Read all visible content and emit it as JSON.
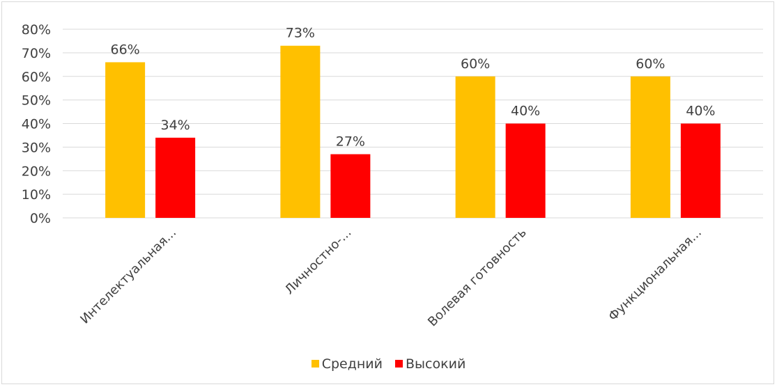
{
  "chart_data": {
    "type": "bar",
    "categories": [
      "Интелектуальная...",
      "Личностно-...",
      "Волевая готовность",
      "Функциональная..."
    ],
    "series": [
      {
        "name": "Средний",
        "values": [
          66,
          73,
          60,
          60
        ],
        "color": "#FFC000"
      },
      {
        "name": "Высокий",
        "values": [
          34,
          27,
          40,
          40
        ],
        "color": "#FF0000"
      }
    ],
    "ylim": [
      0,
      80
    ],
    "yticks": [
      0,
      10,
      20,
      30,
      40,
      50,
      60,
      70,
      80
    ],
    "value_suffix": "%",
    "grid": true,
    "legend_position": "bottom"
  }
}
